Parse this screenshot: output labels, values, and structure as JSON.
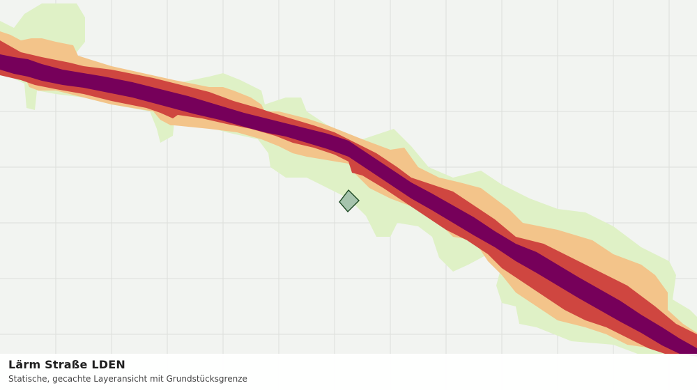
{
  "map": {
    "layer": "Lärm Straße LDEN",
    "noise_band_colors": {
      "outer": "#dff1c6",
      "mid": "#f3c48a",
      "high": "#cf4640",
      "highest": "#76005a"
    },
    "parcel_color": "#a6c4ad",
    "grid_color": "#dcdedb",
    "background": "#f2f4f1"
  },
  "caption": {
    "title": "Lärm Straße LDEN",
    "subtitle": "Statische, gecachte Layeransicht mit Grundstücksgrenze"
  }
}
